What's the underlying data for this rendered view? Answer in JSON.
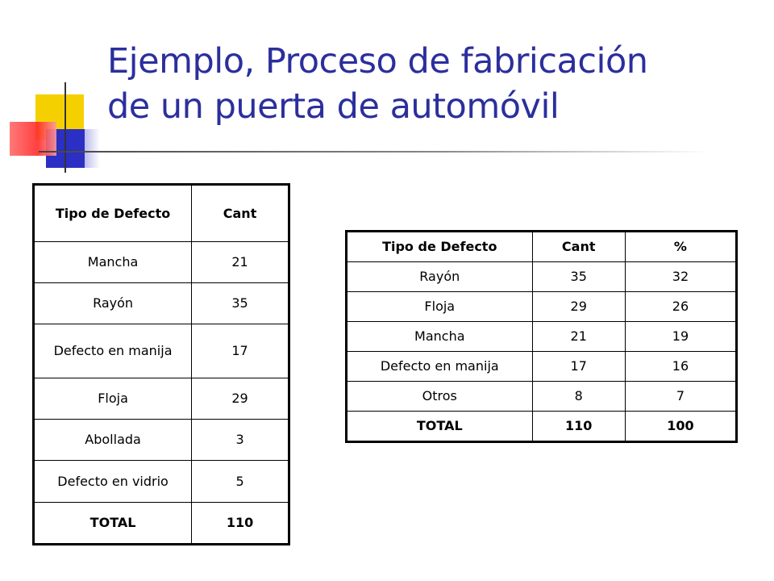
{
  "title_line1": "Ejemplo, Proceso de fabricación",
  "title_line2": "de un puerta de automóvil",
  "table1": {
    "headers": [
      "Tipo de Defecto",
      "Cant"
    ],
    "rows": [
      [
        "Mancha",
        "21"
      ],
      [
        "Rayón",
        "35"
      ],
      [
        "Defecto en manija",
        "17"
      ],
      [
        "Floja",
        "29"
      ],
      [
        "Abollada",
        "3"
      ],
      [
        "Defecto en vidrio",
        "5"
      ]
    ],
    "total": [
      "TOTAL",
      "110"
    ]
  },
  "table2": {
    "headers": [
      "Tipo de Defecto",
      "Cant",
      "%"
    ],
    "rows": [
      [
        "Rayón",
        "35",
        "32"
      ],
      [
        "Floja",
        "29",
        "26"
      ],
      [
        "Mancha",
        "21",
        "19"
      ],
      [
        "Defecto en manija",
        "17",
        "16"
      ],
      [
        "Otros",
        "8",
        "7"
      ]
    ],
    "total": [
      "TOTAL",
      "110",
      "100"
    ]
  },
  "colors": {
    "title": "#2b2f9c",
    "ornament_yellow": "#f5d000",
    "ornament_blue": "#2b2fc4",
    "ornament_red": "#ff2a2a"
  }
}
